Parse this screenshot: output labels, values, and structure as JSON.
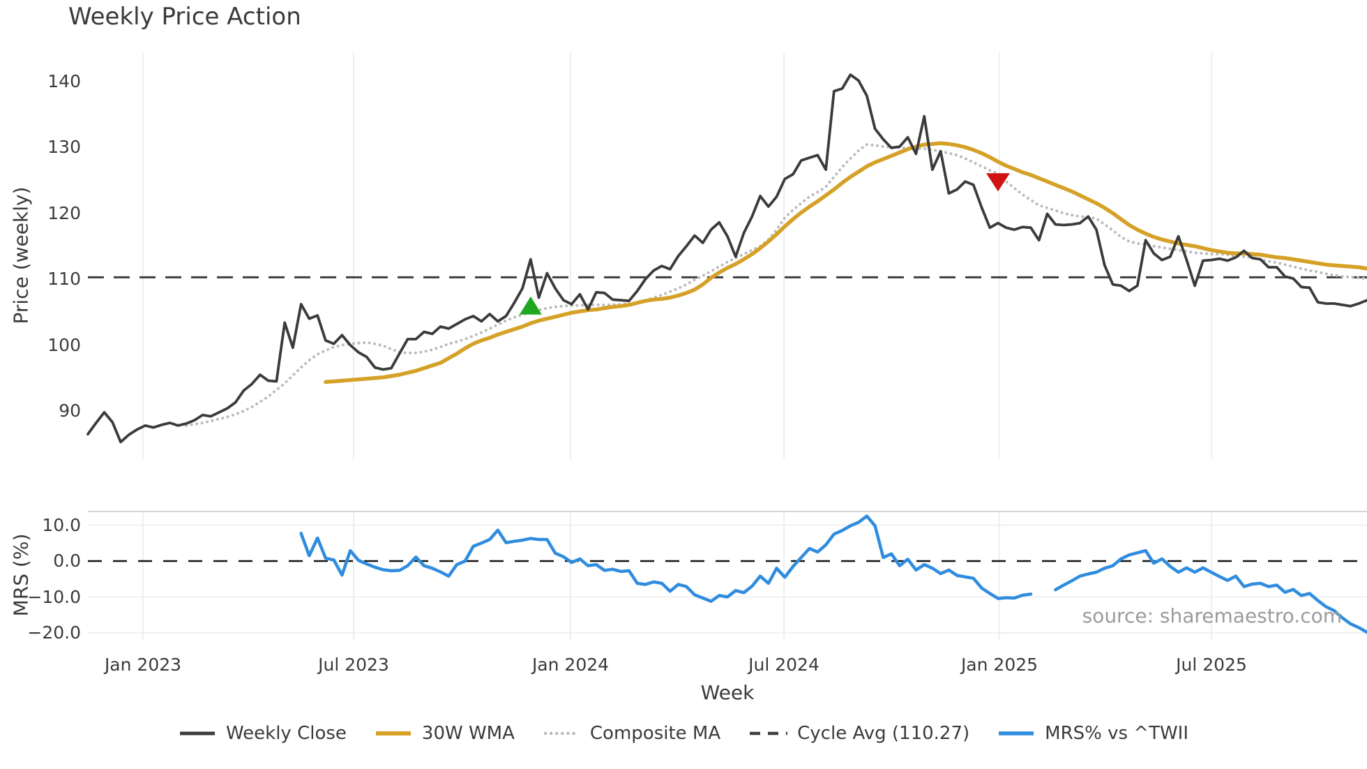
{
  "title": "Weekly Price Action",
  "watermark": "source: sharemaestro.com",
  "legend": {
    "weekly_close": "Weekly Close",
    "wma30": "30W WMA",
    "composite": "Composite MA",
    "cycle_avg": "Cycle Avg (110.27)",
    "mrs": "MRS% vs ^TWII"
  },
  "colors": {
    "weekly_close": "#3B3B3B",
    "wma30": "#D5A127",
    "composite": "#BBBBBB",
    "cycle_avg": "#3F3F3F",
    "mrs": "#2F8CDE",
    "buy_marker": "#1FA81F",
    "sell_marker": "#CF1212",
    "grid": "#EAEAF2",
    "mrs_grid": "#ECECEC",
    "mrs_spine": "#C8C8C8",
    "zero_dash": "#141414",
    "text": "#3a3a3a"
  },
  "chart_data": {
    "type": "line",
    "x_axis": {
      "label": "Week",
      "ticks": [
        {
          "label": "Jan 2023",
          "week": 6.7
        },
        {
          "label": "Jul 2023",
          "week": 32.4
        },
        {
          "label": "Jan 2024",
          "week": 58.85
        },
        {
          "label": "Jul 2024",
          "week": 84.9
        },
        {
          "label": "Jan 2025",
          "week": 111.15
        },
        {
          "label": "Jul 2025",
          "week": 137.05
        }
      ],
      "total_weeks": 156
    },
    "panels": [
      {
        "name": "price",
        "ylabel": "Price (weekly)",
        "ylim": [
          82.7,
          144.4
        ],
        "yticks": [
          {
            "label": "140",
            "v": 140
          },
          {
            "label": "130",
            "v": 130
          },
          {
            "label": "120",
            "v": 120
          },
          {
            "label": "110",
            "v": 110
          },
          {
            "label": "100",
            "v": 100
          },
          {
            "label": "90",
            "v": 90
          }
        ],
        "cycle_avg_value": 110.27,
        "series": [
          {
            "name": "weekly_close",
            "start_week": 0,
            "values": [
              86.5,
              88.2,
              89.8,
              88.3,
              85.3,
              86.4,
              87.2,
              87.8,
              87.5,
              87.9,
              88.2,
              87.8,
              88.1,
              88.6,
              89.4,
              89.2,
              89.8,
              90.4,
              91.3,
              93.1,
              94.1,
              95.5,
              94.6,
              94.5,
              103.4,
              99.6,
              106.2,
              104.0,
              104.5,
              100.7,
              100.2,
              101.5,
              100.0,
              98.9,
              98.2,
              96.6,
              96.3,
              96.5,
              98.7,
              100.9,
              100.9,
              102.0,
              101.7,
              102.8,
              102.5,
              103.2,
              103.9,
              104.4,
              103.6,
              104.7,
              103.6,
              104.4,
              106.4,
              108.6,
              113.0,
              107.2,
              110.9,
              108.6,
              106.8,
              106.2,
              107.7,
              105.4,
              108.0,
              107.9,
              106.9,
              106.8,
              106.7,
              108.2,
              110.0,
              111.3,
              112.0,
              111.5,
              113.5,
              115.0,
              116.6,
              115.5,
              117.5,
              118.6,
              116.5,
              113.4,
              117.0,
              119.5,
              122.6,
              121.0,
              122.5,
              125.2,
              125.9,
              128.0,
              128.4,
              128.8,
              126.6,
              138.5,
              138.9,
              141.0,
              140.1,
              137.8,
              132.8,
              131.2,
              129.9,
              130.1,
              131.5,
              129.0,
              134.7,
              126.6,
              129.4,
              123.0,
              123.6,
              124.8,
              124.3,
              120.9,
              117.8,
              118.5,
              117.8,
              117.5,
              117.9,
              117.8,
              115.9,
              119.9,
              118.3,
              118.2,
              118.3,
              118.5,
              119.5,
              117.5,
              112.1,
              109.2,
              109.0,
              108.2,
              109.0,
              115.9,
              113.9,
              112.9,
              113.4,
              116.5,
              112.9,
              109.0,
              112.8,
              112.9,
              113.1,
              112.8,
              113.3,
              114.3,
              113.2,
              113.0,
              111.8,
              111.8,
              110.4,
              110.1,
              108.8,
              108.7,
              106.5,
              106.3,
              106.3,
              106.1,
              105.9,
              106.3,
              106.8
            ]
          },
          {
            "name": "wma30",
            "start_week": 29,
            "values": [
              94.4,
              94.5,
              94.6,
              94.7,
              94.8,
              94.9,
              95.0,
              95.1,
              95.3,
              95.5,
              95.8,
              96.1,
              96.5,
              96.9,
              97.3,
              98.0,
              98.7,
              99.5,
              100.2,
              100.7,
              101.1,
              101.6,
              102.0,
              102.4,
              102.8,
              103.3,
              103.7,
              104.0,
              104.3,
              104.6,
              104.9,
              105.1,
              105.3,
              105.4,
              105.6,
              105.8,
              105.9,
              106.1,
              106.4,
              106.7,
              106.9,
              107.0,
              107.2,
              107.5,
              107.9,
              108.4,
              109.2,
              110.2,
              111.0,
              111.7,
              112.3,
              113.0,
              113.8,
              114.7,
              115.7,
              116.8,
              118.0,
              119.1,
              120.1,
              121.0,
              121.8,
              122.7,
              123.6,
              124.6,
              125.5,
              126.3,
              127.1,
              127.7,
              128.2,
              128.7,
              129.2,
              129.7,
              130.1,
              130.4,
              130.5,
              130.6,
              130.5,
              130.3,
              130.0,
              129.6,
              129.1,
              128.5,
              127.8,
              127.2,
              126.7,
              126.2,
              125.8,
              125.3,
              124.8,
              124.3,
              123.8,
              123.3,
              122.7,
              122.1,
              121.5,
              120.8,
              120.0,
              119.1,
              118.2,
              117.5,
              116.9,
              116.4,
              116.0,
              115.7,
              115.4,
              115.2,
              115.0,
              114.7,
              114.4,
              114.2,
              114.0,
              113.9,
              113.9,
              113.8,
              113.7,
              113.5,
              113.3,
              113.2,
              113.0,
              112.8,
              112.6,
              112.4,
              112.2,
              112.1,
              112.0,
              111.9,
              111.8,
              111.6
            ]
          },
          {
            "name": "composite",
            "start_week": 12,
            "values": [
              87.8,
              88.0,
              88.2,
              88.5,
              88.8,
              89.1,
              89.5,
              90.0,
              90.6,
              91.4,
              92.2,
              93.2,
              94.2,
              95.4,
              96.6,
              97.7,
              98.6,
              99.2,
              99.7,
              100.0,
              100.2,
              100.3,
              100.4,
              100.2,
              99.9,
              99.4,
              98.9,
              98.8,
              98.8,
              99.0,
              99.3,
              99.7,
              100.2,
              100.5,
              100.9,
              101.4,
              101.9,
              102.5,
              103.1,
              103.7,
              104.2,
              104.6,
              105.0,
              105.3,
              105.6,
              105.8,
              105.9,
              106.0,
              106.0,
              106.1,
              106.1,
              106.1,
              106.1,
              106.2,
              106.2,
              106.5,
              106.8,
              107.2,
              107.6,
              108.1,
              108.6,
              109.2,
              109.9,
              110.5,
              111.2,
              111.9,
              112.6,
              113.2,
              113.8,
              114.4,
              115.0,
              116.0,
              117.5,
              119.3,
              120.5,
              121.5,
              122.5,
              123.2,
              124.0,
              125.5,
              127.0,
              128.3,
              129.5,
              130.4,
              130.3,
              130.1,
              130.0,
              129.9,
              129.9,
              129.8,
              129.8,
              129.6,
              129.4,
              129.1,
              128.8,
              128.3,
              127.7,
              127.1,
              126.5,
              126.0,
              124.8,
              123.8,
              122.8,
              122.0,
              121.2,
              120.8,
              120.4,
              120.0,
              119.7,
              119.5,
              119.4,
              119.2,
              118.3,
              117.4,
              116.4,
              115.7,
              115.4,
              115.3,
              115.0,
              114.8,
              114.6,
              114.4,
              114.2,
              114.0,
              113.9,
              113.8,
              113.8,
              113.7,
              113.5,
              113.4,
              113.3,
              113.0,
              112.7,
              112.5,
              112.2,
              111.9,
              111.6,
              111.3,
              111.1,
              110.8,
              110.6,
              110.4,
              110.3,
              110.2,
              110.1
            ]
          }
        ],
        "markers": [
          {
            "type": "buy-signal",
            "shape": "triangle-up",
            "week": 54,
            "value": 105.8
          },
          {
            "type": "sell-signal",
            "shape": "triangle-down",
            "week": 111,
            "value": 124.9
          }
        ]
      },
      {
        "name": "mrs",
        "ylabel": "MRS (%)",
        "ylim": [
          -22.1,
          13.8
        ],
        "yticks": [
          {
            "label": "10.0",
            "v": 10
          },
          {
            "label": "0.0",
            "v": 0
          },
          {
            "label": "−10.0",
            "v": -10
          },
          {
            "label": "−20.0",
            "v": -20
          }
        ],
        "zero_line": 0,
        "series": [
          {
            "name": "mrs",
            "start_week": 26,
            "values": [
              7.7,
              1.5,
              6.4,
              0.8,
              0.3,
              -3.9,
              2.9,
              0.2,
              -0.8,
              -1.7,
              -2.4,
              -2.7,
              -2.6,
              -1.3,
              1.1,
              -1.3,
              -2.0,
              -3.0,
              -4.2,
              -1.0,
              0.0,
              4.1,
              5.0,
              6.0,
              8.6,
              5.1,
              5.5,
              5.8,
              6.3,
              6.0,
              6.0,
              2.2,
              1.2,
              -0.4,
              0.6,
              -1.3,
              -1.0,
              -2.6,
              -2.3,
              -2.9,
              -2.7,
              -6.2,
              -6.5,
              -5.8,
              -6.2,
              -8.4,
              -6.5,
              -7.1,
              -9.4,
              -10.3,
              -11.2,
              -9.6,
              -10.0,
              -8.2,
              -8.8,
              -7.0,
              -4.2,
              -6.2,
              -2.0,
              -4.5,
              -1.5,
              1.0,
              3.5,
              2.5,
              4.5,
              7.5,
              8.5,
              9.8,
              10.8,
              12.5,
              9.8,
              1.0,
              2.0,
              -1.3,
              0.5,
              -2.5,
              -1.0,
              -2.0,
              -3.5,
              -2.5,
              -4.0,
              -4.4,
              -4.8,
              -7.5,
              -9.0,
              -10.4,
              -10.2,
              -10.3,
              -9.5,
              -9.2,
              null,
              null,
              -8.0,
              -6.7,
              -5.5,
              -4.2,
              -3.6,
              -3.1,
              -2.0,
              -1.3,
              0.6,
              1.7,
              2.3,
              2.9,
              -0.6,
              0.6,
              -1.5,
              -3.1,
              -1.9,
              -3.1,
              -1.9,
              -3.1,
              -4.3,
              -5.4,
              -4.2,
              -7.1,
              -6.4,
              -6.2,
              -7.1,
              -6.7,
              -8.7,
              -7.9,
              -9.6,
              -9.0,
              -11.0,
              -12.7,
              -13.8,
              -15.8,
              -17.5,
              -18.5,
              -19.8
            ]
          }
        ]
      }
    ]
  }
}
